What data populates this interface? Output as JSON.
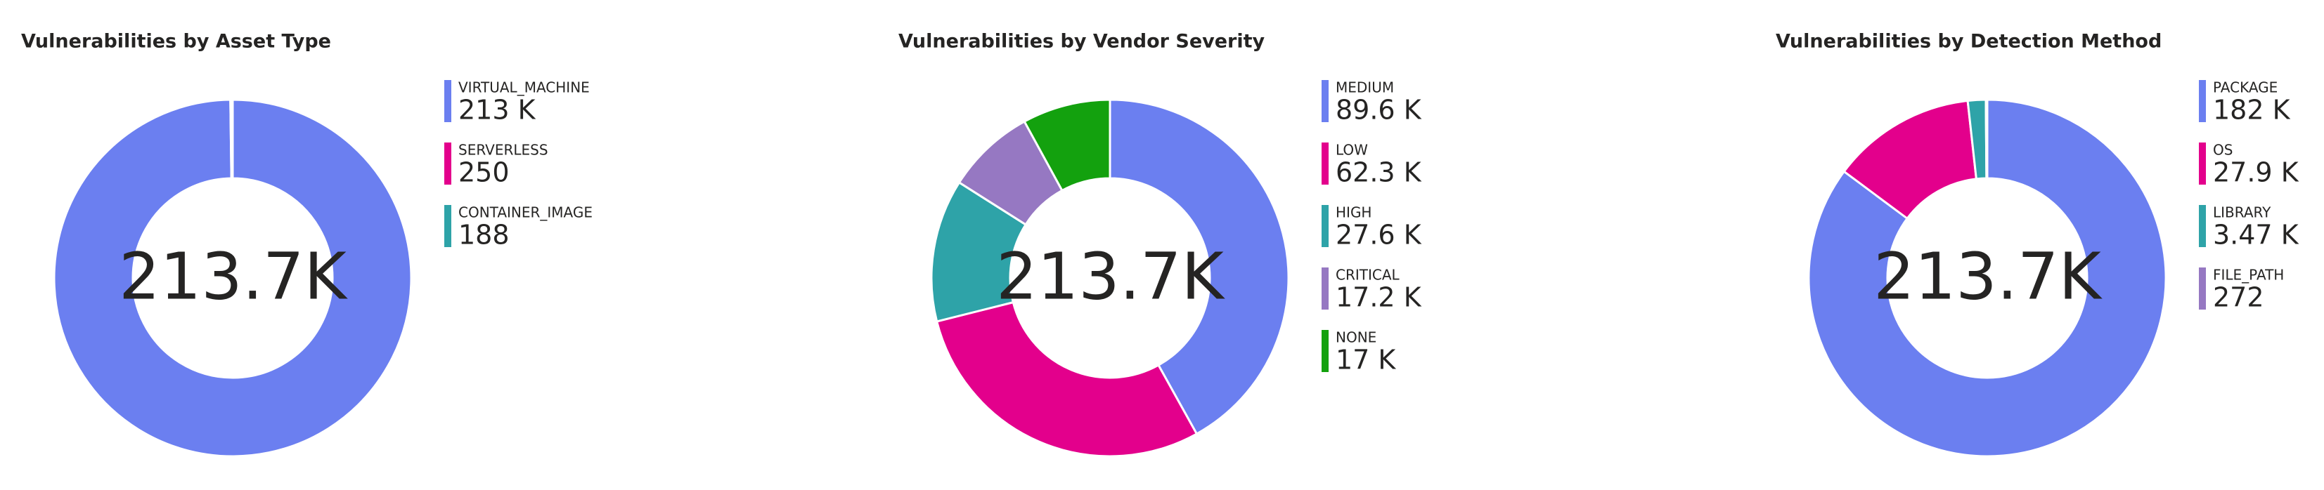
{
  "chart_data": [
    {
      "type": "donut",
      "title": "Vulnerabilities by Asset Type",
      "categories": [
        "VIRTUAL_MACHINE",
        "SERVERLESS",
        "CONTAINER_IMAGE"
      ],
      "values": [
        213000,
        250,
        188
      ],
      "value_labels": [
        "213 K",
        "250",
        "188"
      ],
      "colors": [
        "#6b7ff0",
        "#e3008c",
        "#2ea3a8"
      ],
      "center_label": "213.7K"
    },
    {
      "type": "donut",
      "title": "Vulnerabilities by Vendor Severity",
      "categories": [
        "MEDIUM",
        "LOW",
        "HIGH",
        "CRITICAL",
        "NONE"
      ],
      "values": [
        89600,
        62300,
        27600,
        17200,
        17000
      ],
      "value_labels": [
        "89.6 K",
        "62.3 K",
        "27.6 K",
        "17.2 K",
        "17 K"
      ],
      "colors": [
        "#6b7ff0",
        "#e3008c",
        "#2ea3a8",
        "#9678c2",
        "#13a10e"
      ],
      "center_label": "213.7K"
    },
    {
      "type": "donut",
      "title": "Vulnerabilities by Detection Method",
      "categories": [
        "PACKAGE",
        "OS",
        "LIBRARY",
        "FILE_PATH"
      ],
      "values": [
        182000,
        27900,
        3470,
        272
      ],
      "value_labels": [
        "182 K",
        "27.9 K",
        "3.47 K",
        "272"
      ],
      "colors": [
        "#6b7ff0",
        "#e3008c",
        "#2ea3a8",
        "#9678c2"
      ],
      "center_label": "213.7K"
    }
  ]
}
